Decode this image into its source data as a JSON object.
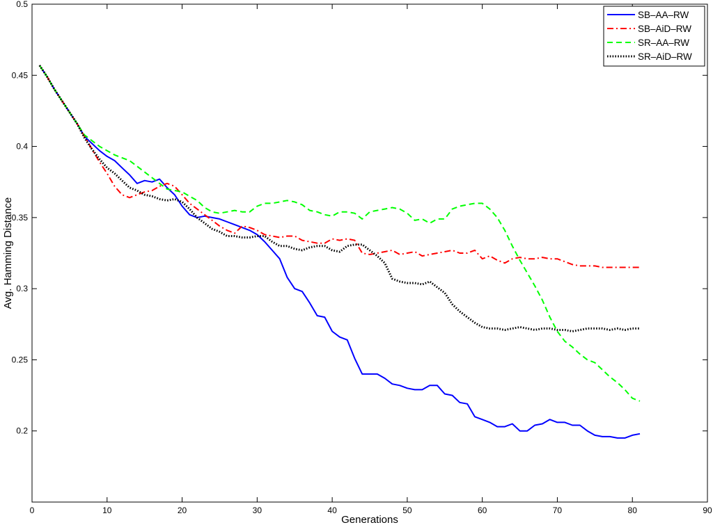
{
  "chart_data": {
    "type": "line",
    "xlabel": "Generations",
    "ylabel": "Avg. Hamming Distance",
    "xlim": [
      0,
      90
    ],
    "ylim": [
      0.15,
      0.5
    ],
    "xticks": [
      0,
      10,
      20,
      30,
      40,
      50,
      60,
      70,
      80,
      90
    ],
    "yticks": [
      0.2,
      0.25,
      0.3,
      0.35,
      0.4,
      0.45,
      0.5
    ],
    "grid": false,
    "legend_position": "top-right",
    "series": [
      {
        "name": "SB–AA–RW",
        "color": "#0000ff",
        "style": "solid",
        "x": [
          1,
          2,
          3,
          4,
          5,
          6,
          7,
          8,
          9,
          10,
          11,
          12,
          13,
          14,
          15,
          16,
          17,
          18,
          19,
          20,
          21,
          22,
          23,
          24,
          25,
          26,
          27,
          28,
          29,
          30,
          31,
          32,
          33,
          34,
          35,
          36,
          37,
          38,
          39,
          40,
          41,
          42,
          43,
          44,
          45,
          46,
          47,
          48,
          49,
          50,
          51,
          52,
          53,
          54,
          55,
          56,
          57,
          58,
          59,
          60,
          61,
          62,
          63,
          64,
          65,
          66,
          67,
          68,
          69,
          70,
          71,
          72,
          73,
          74,
          75,
          76,
          77,
          78,
          79,
          80,
          81
        ],
        "values": [
          0.457,
          0.449,
          0.44,
          0.432,
          0.424,
          0.416,
          0.407,
          0.402,
          0.397,
          0.393,
          0.39,
          0.385,
          0.38,
          0.374,
          0.376,
          0.375,
          0.377,
          0.371,
          0.366,
          0.358,
          0.352,
          0.35,
          0.351,
          0.35,
          0.349,
          0.347,
          0.345,
          0.343,
          0.341,
          0.338,
          0.333,
          0.327,
          0.321,
          0.308,
          0.3,
          0.298,
          0.29,
          0.281,
          0.28,
          0.27,
          0.266,
          0.264,
          0.251,
          0.24,
          0.24,
          0.24,
          0.237,
          0.233,
          0.232,
          0.23,
          0.229,
          0.229,
          0.232,
          0.232,
          0.226,
          0.225,
          0.22,
          0.219,
          0.21,
          0.208,
          0.206,
          0.203,
          0.203,
          0.205,
          0.2,
          0.2,
          0.204,
          0.205,
          0.208,
          0.206,
          0.206,
          0.204,
          0.204,
          0.2,
          0.197,
          0.196,
          0.196,
          0.195,
          0.195,
          0.197,
          0.198
        ]
      },
      {
        "name": "SB–AiD–RW",
        "color": "#ff0000",
        "style": "dashdot",
        "x": [
          1,
          2,
          3,
          4,
          5,
          6,
          7,
          8,
          9,
          10,
          11,
          12,
          13,
          14,
          15,
          16,
          17,
          18,
          19,
          20,
          21,
          22,
          23,
          24,
          25,
          26,
          27,
          28,
          29,
          30,
          31,
          32,
          33,
          34,
          35,
          36,
          37,
          38,
          39,
          40,
          41,
          42,
          43,
          44,
          45,
          46,
          47,
          48,
          49,
          50,
          51,
          52,
          53,
          54,
          55,
          56,
          57,
          58,
          59,
          60,
          61,
          62,
          63,
          64,
          65,
          66,
          67,
          68,
          69,
          70,
          71,
          72,
          73,
          74,
          75,
          76,
          77,
          78,
          79,
          80,
          81
        ],
        "values": [
          0.457,
          0.449,
          0.44,
          0.432,
          0.424,
          0.416,
          0.407,
          0.398,
          0.389,
          0.381,
          0.372,
          0.366,
          0.364,
          0.366,
          0.368,
          0.369,
          0.372,
          0.374,
          0.372,
          0.366,
          0.36,
          0.356,
          0.352,
          0.348,
          0.344,
          0.341,
          0.339,
          0.344,
          0.343,
          0.341,
          0.338,
          0.337,
          0.336,
          0.337,
          0.337,
          0.334,
          0.333,
          0.332,
          0.332,
          0.335,
          0.334,
          0.335,
          0.334,
          0.325,
          0.324,
          0.325,
          0.326,
          0.327,
          0.324,
          0.325,
          0.326,
          0.323,
          0.324,
          0.325,
          0.326,
          0.327,
          0.325,
          0.325,
          0.327,
          0.321,
          0.323,
          0.32,
          0.318,
          0.321,
          0.322,
          0.321,
          0.321,
          0.322,
          0.321,
          0.321,
          0.319,
          0.317,
          0.316,
          0.316,
          0.316,
          0.315,
          0.315,
          0.315,
          0.315,
          0.315,
          0.315
        ]
      },
      {
        "name": "SR–AA–RW",
        "color": "#00ff00",
        "style": "dashed",
        "x": [
          1,
          2,
          3,
          4,
          5,
          6,
          7,
          8,
          9,
          10,
          11,
          12,
          13,
          14,
          15,
          16,
          17,
          18,
          19,
          20,
          21,
          22,
          23,
          24,
          25,
          26,
          27,
          28,
          29,
          30,
          31,
          32,
          33,
          34,
          35,
          36,
          37,
          38,
          39,
          40,
          41,
          42,
          43,
          44,
          45,
          46,
          47,
          48,
          49,
          50,
          51,
          52,
          53,
          54,
          55,
          56,
          57,
          58,
          59,
          60,
          61,
          62,
          63,
          64,
          65,
          66,
          67,
          68,
          69,
          70,
          71,
          72,
          73,
          74,
          75,
          76,
          77,
          78,
          79,
          80,
          81
        ],
        "values": [
          0.457,
          0.449,
          0.44,
          0.432,
          0.424,
          0.416,
          0.408,
          0.404,
          0.4,
          0.397,
          0.394,
          0.392,
          0.39,
          0.386,
          0.382,
          0.378,
          0.374,
          0.37,
          0.369,
          0.368,
          0.365,
          0.362,
          0.357,
          0.354,
          0.353,
          0.354,
          0.355,
          0.354,
          0.354,
          0.358,
          0.36,
          0.36,
          0.361,
          0.362,
          0.361,
          0.359,
          0.355,
          0.354,
          0.352,
          0.351,
          0.354,
          0.354,
          0.353,
          0.349,
          0.354,
          0.355,
          0.356,
          0.357,
          0.356,
          0.353,
          0.348,
          0.349,
          0.346,
          0.349,
          0.349,
          0.356,
          0.358,
          0.359,
          0.36,
          0.36,
          0.356,
          0.35,
          0.341,
          0.33,
          0.32,
          0.311,
          0.302,
          0.292,
          0.28,
          0.27,
          0.263,
          0.259,
          0.254,
          0.25,
          0.248,
          0.243,
          0.238,
          0.234,
          0.229,
          0.223,
          0.221
        ]
      },
      {
        "name": "SR–AiD–RW",
        "color": "#000000",
        "style": "dotted",
        "x": [
          1,
          2,
          3,
          4,
          5,
          6,
          7,
          8,
          9,
          10,
          11,
          12,
          13,
          14,
          15,
          16,
          17,
          18,
          19,
          20,
          21,
          22,
          23,
          24,
          25,
          26,
          27,
          28,
          29,
          30,
          31,
          32,
          33,
          34,
          35,
          36,
          37,
          38,
          39,
          40,
          41,
          42,
          43,
          44,
          45,
          46,
          47,
          48,
          49,
          50,
          51,
          52,
          53,
          54,
          55,
          56,
          57,
          58,
          59,
          60,
          61,
          62,
          63,
          64,
          65,
          66,
          67,
          68,
          69,
          70,
          71,
          72,
          73,
          74,
          75,
          76,
          77,
          78,
          79,
          80,
          81
        ],
        "values": [
          0.457,
          0.449,
          0.44,
          0.432,
          0.424,
          0.416,
          0.406,
          0.398,
          0.391,
          0.385,
          0.381,
          0.376,
          0.371,
          0.369,
          0.366,
          0.365,
          0.363,
          0.362,
          0.363,
          0.361,
          0.356,
          0.35,
          0.346,
          0.342,
          0.34,
          0.337,
          0.337,
          0.336,
          0.336,
          0.337,
          0.337,
          0.333,
          0.33,
          0.33,
          0.328,
          0.327,
          0.329,
          0.33,
          0.33,
          0.327,
          0.326,
          0.33,
          0.331,
          0.331,
          0.327,
          0.323,
          0.318,
          0.307,
          0.305,
          0.304,
          0.304,
          0.303,
          0.305,
          0.301,
          0.297,
          0.289,
          0.284,
          0.28,
          0.276,
          0.273,
          0.272,
          0.272,
          0.271,
          0.272,
          0.273,
          0.272,
          0.271,
          0.272,
          0.272,
          0.271,
          0.271,
          0.27,
          0.271,
          0.272,
          0.272,
          0.272,
          0.271,
          0.272,
          0.271,
          0.272,
          0.272
        ]
      }
    ]
  }
}
